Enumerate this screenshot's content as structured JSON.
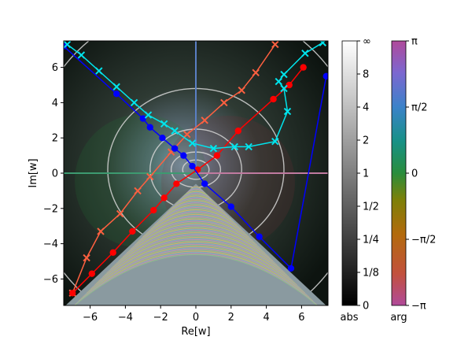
{
  "chart_data": {
    "type": "scatter",
    "xlabel": "Re[w]",
    "ylabel": "Im[w]",
    "xlim": [
      -7.5,
      7.5
    ],
    "ylim": [
      -7.5,
      7.5
    ],
    "x_ticks": [
      -6,
      -4,
      -2,
      0,
      2,
      4,
      6
    ],
    "y_ticks": [
      -6,
      -4,
      -2,
      0,
      2,
      4,
      6
    ],
    "x_tick_labels": [
      "−6",
      "−4",
      "−2",
      "0",
      "2",
      "4",
      "6"
    ],
    "y_tick_labels": [
      "−6",
      "−4",
      "−2",
      "0",
      "2",
      "4",
      "6"
    ],
    "background": "domain coloring of a complex function: hue = arg, brightness = abs, with contour rings and a dense wedge of level lines in the lower half-plane",
    "colorbars": [
      {
        "name": "abs",
        "label": "abs",
        "tick_labels": [
          "∞",
          "8",
          "4",
          "2",
          "1",
          "1/2",
          "1/4",
          "1/8",
          "0"
        ]
      },
      {
        "name": "arg",
        "label": "arg",
        "tick_labels": [
          "π",
          "π/2",
          "0",
          "−π/2",
          "−π"
        ]
      }
    ],
    "series": [
      {
        "color": "#ff6040",
        "style": "line with x markers",
        "points": [
          [
            -7.0,
            -6.8
          ],
          [
            -6.2,
            -4.8
          ],
          [
            -5.4,
            -3.3
          ],
          [
            -4.3,
            -2.3
          ],
          [
            -3.3,
            -1.0
          ],
          [
            -2.6,
            -0.2
          ],
          [
            -1.4,
            1.2
          ],
          [
            -0.5,
            2.2
          ],
          [
            0.5,
            3.0
          ],
          [
            1.6,
            4.0
          ],
          [
            2.6,
            4.7
          ],
          [
            3.4,
            5.7
          ],
          [
            4.5,
            7.3
          ]
        ]
      },
      {
        "color": "#ff0000",
        "style": "line with circle markers",
        "points": [
          [
            -7.0,
            -6.8
          ],
          [
            -5.9,
            -5.7
          ],
          [
            -4.7,
            -4.5
          ],
          [
            -3.6,
            -3.3
          ],
          [
            -2.4,
            -2.1
          ],
          [
            -1.8,
            -1.4
          ],
          [
            -1.1,
            -0.6
          ],
          [
            0.1,
            0.2
          ],
          [
            1.2,
            1.0
          ],
          [
            2.4,
            2.4
          ],
          [
            4.4,
            4.2
          ],
          [
            5.3,
            5.0
          ],
          [
            6.1,
            6.0
          ]
        ]
      },
      {
        "color": "#0000ff",
        "style": "line with circle markers",
        "points": [
          [
            -7.5,
            7.2
          ],
          [
            -4.5,
            4.5
          ],
          [
            -3.0,
            3.1
          ],
          [
            -2.6,
            2.6
          ],
          [
            -1.9,
            2.0
          ],
          [
            -1.2,
            1.4
          ],
          [
            -0.7,
            1.0
          ],
          [
            -0.2,
            0.4
          ],
          [
            0.5,
            -0.6
          ],
          [
            2.0,
            -1.9
          ],
          [
            3.6,
            -3.6
          ],
          [
            5.4,
            -5.4
          ],
          [
            7.4,
            5.5
          ]
        ]
      },
      {
        "color": "#00e5ee",
        "style": "line with x markers",
        "points": [
          [
            -7.3,
            7.3
          ],
          [
            -6.5,
            6.7
          ],
          [
            -5.5,
            5.8
          ],
          [
            -4.5,
            4.9
          ],
          [
            -3.5,
            4.0
          ],
          [
            -2.7,
            3.3
          ],
          [
            -1.8,
            2.8
          ],
          [
            -1.2,
            2.4
          ],
          [
            -0.2,
            1.7
          ],
          [
            1.0,
            1.4
          ],
          [
            2.2,
            1.5
          ],
          [
            3.0,
            1.5
          ],
          [
            4.5,
            1.8
          ],
          [
            5.2,
            3.5
          ],
          [
            5.0,
            4.8
          ],
          [
            4.7,
            5.2
          ],
          [
            5.0,
            5.6
          ],
          [
            6.2,
            6.8
          ],
          [
            7.2,
            7.4
          ]
        ]
      }
    ]
  }
}
